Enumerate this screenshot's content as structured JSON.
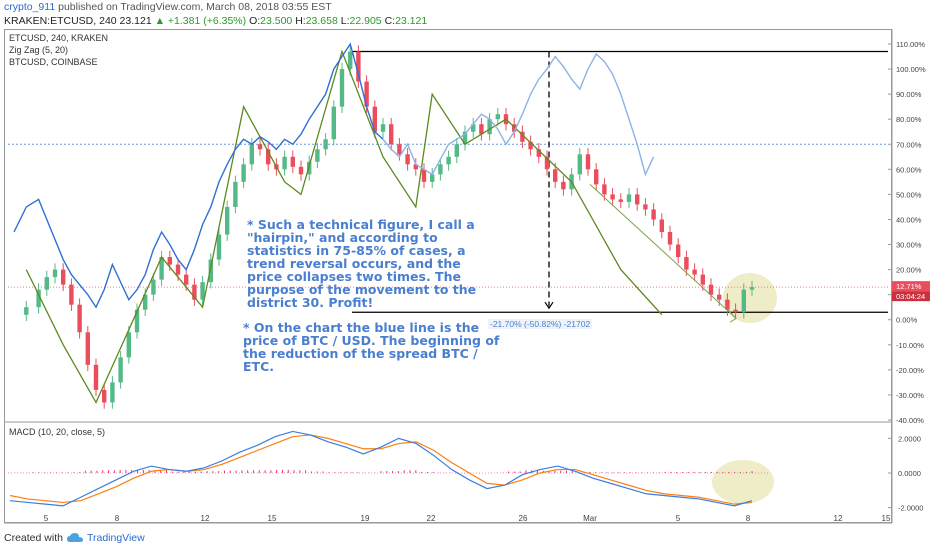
{
  "header": {
    "author": "crypto_911",
    "published": "published on TradingView.com, March 08, 2018 03:55 EST",
    "symbol": "KRAKEN:ETCUSD, 240",
    "last": "23.121",
    "change": "▲ +1.381 (+6.35%)",
    "open_label": "O:",
    "open": "23.500",
    "high_label": "H:",
    "high": "23.658",
    "low_label": "L:",
    "low": "22.905",
    "close_label": "C:",
    "close": "23.121"
  },
  "legend": {
    "main": "ETCUSD, 240, KRAKEN",
    "zigzag": "Zig Zag (5, 20)",
    "compare": "BTCUSD, COINBASE",
    "macd": "MACD (10, 20, close, 5)"
  },
  "annotations": {
    "text1": "* Such a technical figure, I call a \"hairpin,\" and according to statistics in 75-85% of cases, a trend reversal occurs, and the price collapses two times. The purpose of the movement to the district 30. Profit!",
    "text2": "* On the chart the blue line is the price of BTC / USD. The beginning of the reduction of the spread BTC / ETC.",
    "measure": "-21.70% (-50.82%) -21702"
  },
  "price_badge": {
    "pct": "12.71%",
    "time": "03:04:24"
  },
  "footer": {
    "created_with": "Created with",
    "brand": "TradingView"
  },
  "colors": {
    "up": "#53b987",
    "down": "#eb4d5c",
    "btc": "#2f6fd6",
    "zigzag": "#5c8a1e",
    "macd": "#3b7de0",
    "signal": "#ff7f0e",
    "hist": "#e0307a",
    "highlight": "#e9e7b5"
  },
  "chart_data": [
    {
      "type": "line",
      "title": "",
      "y_axis": {
        "unit": "%",
        "ticks": [
          "110.00%",
          "100.00%",
          "90.00%",
          "80.00%",
          "70.00%",
          "60.00%",
          "50.00%",
          "40.00%",
          "30.00%",
          "20.00%",
          "10.00%",
          "0.00%",
          "-10.00%",
          "-20.00%",
          "-30.00%",
          "-40.00%"
        ],
        "ylim": [
          -40,
          110
        ]
      },
      "x_axis": {
        "ticks": [
          "5",
          "8",
          "12",
          "15",
          "19",
          "22",
          "26",
          "Mar",
          "5",
          "8",
          "12",
          "15"
        ]
      },
      "series": [
        {
          "name": "ETCUSD",
          "x": [
            0,
            3,
            6,
            8,
            10,
            12,
            14,
            16,
            18,
            20,
            22,
            24,
            26,
            28,
            30,
            32,
            34,
            36,
            38,
            40,
            42,
            44,
            46,
            48,
            50,
            52,
            54,
            56,
            58,
            60,
            62,
            64,
            66,
            68,
            70,
            72,
            74,
            76,
            78,
            80,
            82,
            84,
            86,
            88,
            90,
            92,
            94,
            96,
            98,
            100,
            102,
            104,
            106,
            108,
            110,
            112,
            114,
            116,
            118,
            120,
            122,
            124,
            126,
            128,
            130,
            132,
            134,
            136,
            138,
            140,
            142,
            144,
            146,
            148,
            150,
            152,
            154,
            156,
            158,
            160,
            162,
            164,
            166,
            168,
            170,
            172,
            174,
            176,
            178,
            180
          ],
          "values": [
            2,
            5,
            12,
            17,
            20,
            14,
            6,
            -5,
            -18,
            -28,
            -33,
            -25,
            -15,
            -5,
            4,
            10,
            16,
            25,
            22,
            18,
            14,
            8,
            15,
            24,
            34,
            45,
            55,
            62,
            70,
            68,
            62,
            60,
            65,
            61,
            58,
            63,
            68,
            72,
            85,
            100,
            107,
            95,
            85,
            75,
            78,
            70,
            66,
            62,
            60,
            55,
            58,
            62,
            65,
            70,
            75,
            78,
            74,
            80,
            82,
            78,
            75,
            71,
            68,
            65,
            60,
            55,
            52,
            58,
            66,
            60,
            54,
            50,
            48,
            47,
            50,
            46,
            44,
            40,
            35,
            30,
            25,
            20,
            18,
            14,
            10,
            8,
            4,
            3,
            12,
            13
          ]
        },
        {
          "name": "BTCUSD",
          "x": [
            0,
            3,
            6,
            8,
            10,
            12,
            14,
            16,
            18,
            20,
            22,
            24,
            26,
            28,
            30,
            32,
            34,
            36,
            38,
            40,
            42,
            44,
            46,
            48,
            50,
            52,
            54,
            56,
            58,
            60,
            62,
            64,
            66,
            68,
            70,
            72,
            74,
            76,
            78,
            80,
            82,
            84,
            86,
            88,
            90,
            92,
            94,
            96,
            98,
            100,
            102,
            104,
            106,
            108,
            110,
            112,
            114,
            116,
            118,
            120,
            122,
            124,
            126,
            128,
            130,
            132,
            134,
            136,
            138,
            140,
            142,
            144,
            146,
            148,
            150,
            152,
            154,
            156
          ],
          "values": [
            35,
            45,
            48,
            40,
            32,
            24,
            18,
            14,
            10,
            5,
            12,
            22,
            15,
            8,
            12,
            18,
            28,
            35,
            30,
            24,
            20,
            28,
            38,
            45,
            55,
            62,
            68,
            72,
            70,
            73,
            71,
            68,
            72,
            70,
            74,
            80,
            85,
            90,
            100,
            105,
            110,
            98,
            85,
            75,
            72,
            68,
            65,
            70,
            62,
            60,
            58,
            64,
            70,
            72,
            74,
            78,
            82,
            80,
            76,
            70,
            75,
            82,
            90,
            96,
            100,
            105,
            101,
            96,
            92,
            100,
            106,
            103,
            98,
            90,
            80,
            70,
            58,
            65
          ]
        },
        {
          "name": "Zig Zag",
          "x": [
            3,
            12,
            20,
            36,
            46,
            56,
            66,
            70,
            80,
            90,
            98,
            102,
            110,
            120,
            136,
            148,
            158
          ],
          "values": [
            20,
            -10,
            -33,
            25,
            5,
            85,
            55,
            50,
            107,
            65,
            45,
            90,
            70,
            80,
            55,
            20,
            2
          ]
        }
      ],
      "annotations": [
        "12.71%"
      ]
    },
    {
      "type": "line",
      "title": "",
      "y_axis": {
        "ticks": [
          "2.0000",
          "0.0000",
          "-2.0000"
        ],
        "ylim": [
          -2.6,
          2.6
        ]
      },
      "series": [
        {
          "name": "MACD",
          "values": [
            -1.6,
            -1.7,
            -1.8,
            -1.9,
            -1.4,
            -0.9,
            -0.4,
            0.1,
            0.4,
            0.2,
            0.1,
            0.3,
            0.7,
            1.2,
            1.6,
            2.1,
            2.4,
            2.2,
            1.8,
            1.5,
            1.1,
            1.5,
            2.0,
            1.7,
            1.0,
            0.2,
            -0.4,
            -0.9,
            -0.7,
            -0.1,
            0.2,
            0.4,
            0.1,
            -0.3,
            -0.6,
            -0.9,
            -1.2,
            -1.3,
            -1.4,
            -1.5,
            -1.7,
            -1.9,
            -1.6
          ]
        },
        {
          "name": "Signal",
          "values": [
            -1.3,
            -1.5,
            -1.6,
            -1.7,
            -1.6,
            -1.2,
            -0.8,
            -0.3,
            0.1,
            0.2,
            0.1,
            0.2,
            0.5,
            0.9,
            1.3,
            1.7,
            2.1,
            2.2,
            2.0,
            1.7,
            1.4,
            1.4,
            1.7,
            1.8,
            1.3,
            0.6,
            0.0,
            -0.6,
            -0.7,
            -0.4,
            0.0,
            0.2,
            0.2,
            -0.1,
            -0.4,
            -0.7,
            -1.0,
            -1.2,
            -1.3,
            -1.4,
            -1.6,
            -1.8,
            -1.7
          ]
        }
      ]
    }
  ]
}
